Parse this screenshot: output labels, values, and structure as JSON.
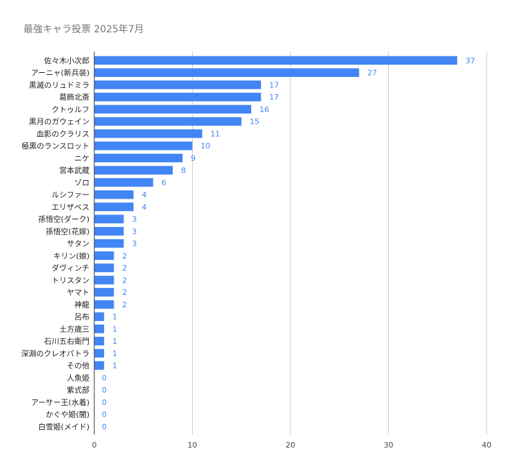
{
  "chart_data": {
    "type": "bar",
    "orientation": "horizontal",
    "title": "最強キャラ投票 2025年7月",
    "xlabel": "",
    "ylabel": "",
    "xlim": [
      0,
      40
    ],
    "ticks": [
      "0",
      "10",
      "20",
      "30",
      "40"
    ],
    "grid": true,
    "legend": "none",
    "bar_color": "#4285f4",
    "categories": [
      "佐々木小次郎",
      "アーニャ(新兵装)",
      "黒滅のリュドミラ",
      "葛飾北斎",
      "クトゥルフ",
      "黒月のガウェイン",
      "血影のクラリス",
      "極黒のランスロット",
      "ニケ",
      "宮本武蔵",
      "ゾロ",
      "ルシファー",
      "エリザベス",
      "孫悟空(ダーク)",
      "孫悟空(花嫁)",
      "サタン",
      "キリン(娘)",
      "ダヴィンチ",
      "トリスタン",
      "ヤマト",
      "神龍",
      "呂布",
      "土方歳三",
      "石川五右衛門",
      "深淵のクレオパトラ",
      "その他",
      "人魚姫",
      "紫式部",
      "アーサー王(水着)",
      "かぐや姫(闇)",
      "白雪姫(メイド)"
    ],
    "values": [
      37,
      27,
      17,
      17,
      16,
      15,
      11,
      10,
      9,
      8,
      6,
      4,
      4,
      3,
      3,
      3,
      2,
      2,
      2,
      2,
      2,
      1,
      1,
      1,
      1,
      1,
      0,
      0,
      0,
      0,
      0
    ]
  }
}
